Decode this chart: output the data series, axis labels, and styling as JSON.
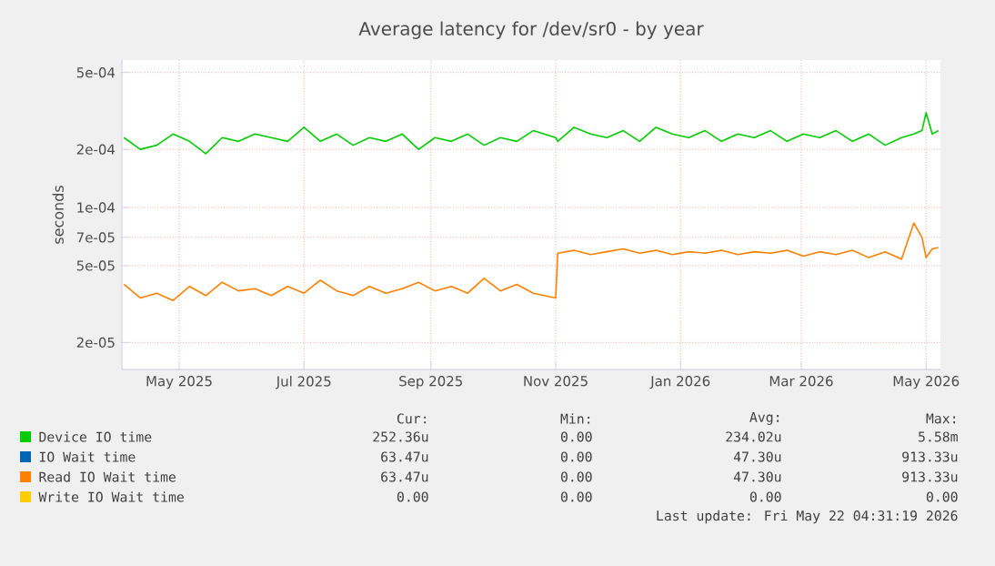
{
  "chart_data": {
    "type": "line",
    "title": "Average latency for /dev/sr0 - by year",
    "ylabel": "seconds",
    "log": "y",
    "grid": true,
    "legend": "bottom",
    "marker": "none",
    "line_style": "solid",
    "xlim": [
      "2025-04-17",
      "2026-05-22"
    ],
    "xticks": [
      {
        "value": "2025-05-15",
        "label": "May 2025"
      },
      {
        "value": "2025-07-15",
        "label": "Jul 2025"
      },
      {
        "value": "2025-09-15",
        "label": "Sep 2025"
      },
      {
        "value": "2025-11-15",
        "label": "Nov 2025"
      },
      {
        "value": "2026-01-15",
        "label": "Jan 2026"
      },
      {
        "value": "2026-03-15",
        "label": "Mar 2026"
      },
      {
        "value": "2026-05-15",
        "label": "May 2026"
      }
    ],
    "ylim": [
      1.45e-05,
      0.00058
    ],
    "yticks": [
      {
        "value": 2e-05,
        "label": "2e-05"
      },
      {
        "value": 5e-05,
        "label": "5e-05"
      },
      {
        "value": 7e-05,
        "label": "7e-05"
      },
      {
        "value": 0.0001,
        "label": "1e-04"
      },
      {
        "value": 0.0002,
        "label": "2e-04"
      },
      {
        "value": 0.0005,
        "label": "5e-04"
      }
    ],
    "x": [
      "2025-04-18",
      "2025-04-26",
      "2025-05-04",
      "2025-05-12",
      "2025-05-20",
      "2025-05-28",
      "2025-06-05",
      "2025-06-13",
      "2025-06-21",
      "2025-06-29",
      "2025-07-07",
      "2025-07-15",
      "2025-07-23",
      "2025-07-31",
      "2025-08-08",
      "2025-08-16",
      "2025-08-24",
      "2025-09-01",
      "2025-09-09",
      "2025-09-17",
      "2025-09-25",
      "2025-10-03",
      "2025-10-11",
      "2025-10-19",
      "2025-10-27",
      "2025-11-04",
      "2025-11-15",
      "2025-11-16",
      "2025-11-24",
      "2025-12-02",
      "2025-12-10",
      "2025-12-18",
      "2025-12-26",
      "2026-01-03",
      "2026-01-11",
      "2026-01-19",
      "2026-01-27",
      "2026-02-04",
      "2026-02-12",
      "2026-02-20",
      "2026-02-28",
      "2026-03-08",
      "2026-03-16",
      "2026-03-24",
      "2026-04-01",
      "2026-04-09",
      "2026-04-17",
      "2026-04-25",
      "2026-05-03",
      "2026-05-09",
      "2026-05-13",
      "2026-05-15",
      "2026-05-18",
      "2026-05-21"
    ],
    "series": [
      {
        "name": "Device IO time",
        "color": "#00cc00",
        "values": [
          0.00023,
          0.0002,
          0.00021,
          0.00024,
          0.00022,
          0.00019,
          0.00023,
          0.00022,
          0.00024,
          0.00023,
          0.00022,
          0.00026,
          0.00022,
          0.00024,
          0.00021,
          0.00023,
          0.00022,
          0.00024,
          0.0002,
          0.00023,
          0.00022,
          0.00024,
          0.00021,
          0.00023,
          0.00022,
          0.00025,
          0.00023,
          0.00022,
          0.00026,
          0.00024,
          0.00023,
          0.00025,
          0.00022,
          0.00026,
          0.00024,
          0.00023,
          0.00025,
          0.00022,
          0.00024,
          0.00023,
          0.00025,
          0.00022,
          0.00024,
          0.00023,
          0.00025,
          0.00022,
          0.00024,
          0.00021,
          0.00023,
          0.00024,
          0.00025,
          0.00031,
          0.00024,
          0.00025
        ]
      },
      {
        "name": "IO Wait time",
        "color": "#0066b3",
        "values": [
          null,
          null,
          null,
          null,
          null,
          null,
          null,
          null,
          null,
          null,
          null,
          null,
          null,
          null,
          null,
          null,
          null,
          null,
          null,
          null,
          null,
          null,
          null,
          null,
          null,
          null,
          null,
          null,
          null,
          null,
          null,
          null,
          null,
          null,
          null,
          null,
          null,
          null,
          null,
          null,
          null,
          null,
          null,
          null,
          null,
          null,
          null,
          null,
          null,
          null,
          null,
          null,
          null,
          null
        ]
      },
      {
        "name": "Read IO Wait time",
        "color": "#ff8000",
        "values": [
          4e-05,
          3.4e-05,
          3.6e-05,
          3.3e-05,
          3.9e-05,
          3.5e-05,
          4.1e-05,
          3.7e-05,
          3.8e-05,
          3.5e-05,
          3.9e-05,
          3.6e-05,
          4.2e-05,
          3.7e-05,
          3.5e-05,
          3.9e-05,
          3.6e-05,
          3.8e-05,
          4.1e-05,
          3.7e-05,
          3.9e-05,
          3.6e-05,
          4.3e-05,
          3.7e-05,
          4e-05,
          3.6e-05,
          3.4e-05,
          5.8e-05,
          6e-05,
          5.7e-05,
          5.9e-05,
          6.1e-05,
          5.8e-05,
          6e-05,
          5.7e-05,
          5.9e-05,
          5.8e-05,
          6e-05,
          5.7e-05,
          5.9e-05,
          5.8e-05,
          6e-05,
          5.6e-05,
          5.9e-05,
          5.7e-05,
          6e-05,
          5.5e-05,
          5.9e-05,
          5.4e-05,
          8.3e-05,
          7e-05,
          5.5e-05,
          6.1e-05,
          6.2e-05
        ]
      },
      {
        "name": "Write IO Wait time",
        "color": "#ffcc00",
        "values": [
          null,
          null,
          null,
          null,
          null,
          null,
          null,
          null,
          null,
          null,
          null,
          null,
          null,
          null,
          null,
          null,
          null,
          null,
          null,
          null,
          null,
          null,
          null,
          null,
          null,
          null,
          null,
          null,
          null,
          null,
          null,
          null,
          null,
          null,
          null,
          null,
          null,
          null,
          null,
          null,
          null,
          null,
          null,
          null,
          null,
          null,
          null,
          null,
          null,
          null,
          null,
          null,
          null,
          null
        ]
      }
    ],
    "annotations": [
      "Cur:",
      "Min:",
      "Avg:",
      "Max:",
      "252.36u",
      "0.00",
      "234.02u",
      "5.58m",
      "63.47u",
      "0.00",
      "47.30u",
      "913.33u",
      "63.47u",
      "0.00",
      "47.30u",
      "913.33u",
      "0.00",
      "0.00",
      "0.00",
      "0.00",
      "Last update: Fri May 22 04:31:19 2026"
    ]
  }
}
